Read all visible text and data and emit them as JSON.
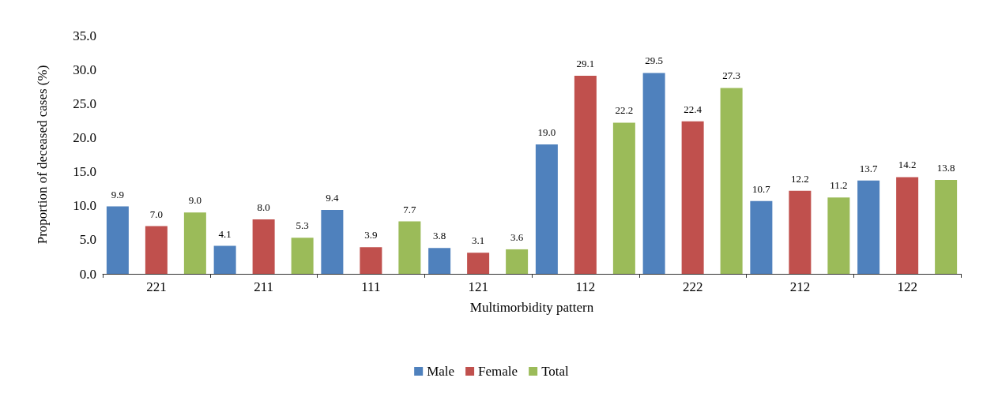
{
  "chart_data": {
    "type": "bar",
    "categories": [
      "221",
      "211",
      "111",
      "121",
      "112",
      "222",
      "212",
      "122"
    ],
    "xlabel": "Multimorbidity pattern",
    "ylabel": "Proportion of deceased cases (%)",
    "series": [
      {
        "name": "Male",
        "color": "#4f81bd",
        "values": [
          9.9,
          4.1,
          9.4,
          3.8,
          19.0,
          29.5,
          10.7,
          13.7
        ],
        "value_labels": [
          "9.9",
          "4.1",
          "9.4",
          "3.8",
          "19.0",
          "29.5",
          "10.7",
          "13.7"
        ]
      },
      {
        "name": "Female",
        "color": "#c0504d",
        "values": [
          7.0,
          8.0,
          3.9,
          3.1,
          29.1,
          22.4,
          12.2,
          14.2
        ],
        "value_labels": [
          "7.0",
          "8.0",
          "3.9",
          "3.1",
          "29.1",
          "22.4",
          "12.2",
          "14.2"
        ]
      },
      {
        "name": "Total",
        "color": "#9bbb59",
        "values": [
          9.0,
          5.3,
          7.7,
          3.6,
          22.2,
          27.3,
          11.2,
          13.8
        ],
        "value_labels": [
          "9.0",
          "5.3",
          "7.7",
          "3.6",
          "22.2",
          "27.3",
          "11.2",
          "13.8"
        ]
      }
    ],
    "ylim": [
      0,
      35
    ],
    "yticks": [
      {
        "value": 0,
        "label": "0.0"
      },
      {
        "value": 5,
        "label": "5.0"
      },
      {
        "value": 10,
        "label": "10.0"
      },
      {
        "value": 15,
        "label": "15.0"
      },
      {
        "value": 20,
        "label": "20.0"
      },
      {
        "value": 25,
        "label": "25.0"
      },
      {
        "value": 30,
        "label": "30.0"
      },
      {
        "value": 35,
        "label": "35.0"
      }
    ],
    "grid": false,
    "legend": "bottom"
  }
}
